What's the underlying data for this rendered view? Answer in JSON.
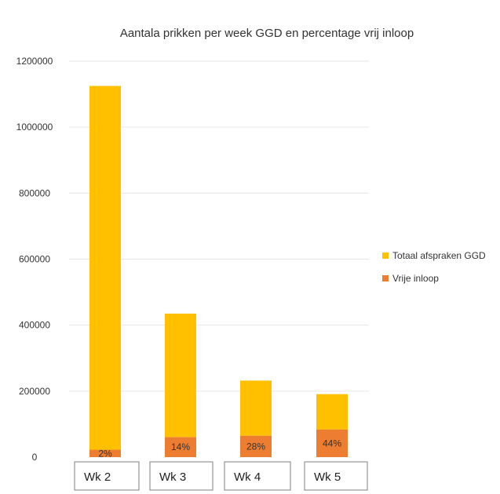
{
  "chart_data": {
    "type": "bar",
    "stacked": true,
    "title": "Aantala prikken per week GGD en percentage vrij inloop",
    "categories": [
      "Wk 2",
      "Wk 3",
      "Wk 4",
      "Wk 5"
    ],
    "series": [
      {
        "name": "Vrije inloop",
        "color": "#ed7d31",
        "values": [
          22500,
          61000,
          65000,
          84000
        ],
        "labels": [
          "2%",
          "14%",
          "28%",
          "44%"
        ]
      },
      {
        "name": "Totaal afspraken GGD",
        "color": "#ffc000",
        "values": [
          1102500,
          374000,
          167000,
          107000
        ]
      }
    ],
    "ylim": [
      0,
      1200000
    ],
    "yticks": [
      0,
      200000,
      400000,
      600000,
      800000,
      1000000,
      1200000
    ],
    "ytick_labels": [
      "0",
      "200000",
      "400000",
      "600000",
      "800000",
      "1000000",
      "1200000"
    ],
    "xlabel": "",
    "ylabel": "",
    "grid": true,
    "legend_position": "right"
  }
}
